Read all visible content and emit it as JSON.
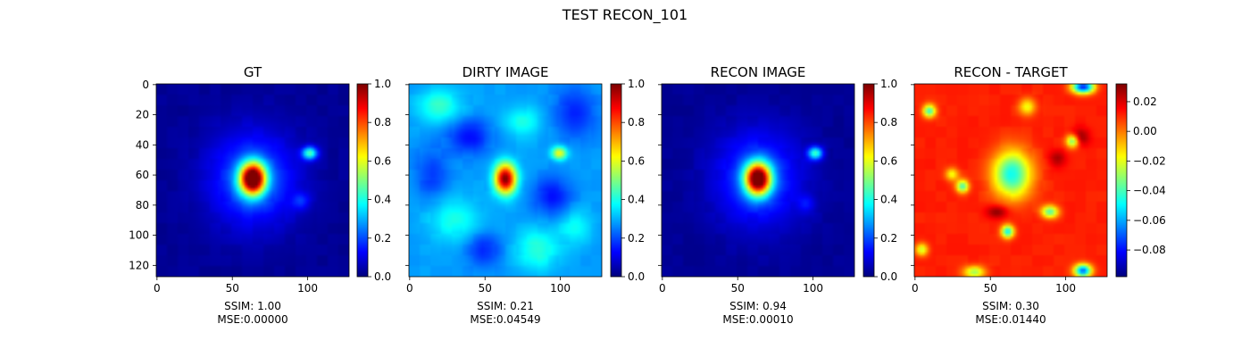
{
  "figure": {
    "suptitle": "TEST RECON_101"
  },
  "chart_data": [
    {
      "type": "heatmap",
      "title": "GT",
      "xlabel_lines": [
        "SSIM: 1.00",
        "MSE:0.00000"
      ],
      "x_ticks": [
        "0",
        "50",
        "100"
      ],
      "y_ticks": [
        "0",
        "20",
        "40",
        "60",
        "80",
        "100",
        "120"
      ],
      "colorbar": {
        "range": [
          0,
          1
        ],
        "ticks": [
          "0.0",
          "0.2",
          "0.4",
          "0.6",
          "0.8",
          "1.0"
        ],
        "colormap": "jet"
      },
      "image": {
        "size": 128,
        "background": 0.02,
        "blobs": [
          {
            "x": 64,
            "y": 63,
            "amp": 0.98,
            "sx": 6,
            "sy": 7.5
          },
          {
            "x": 64,
            "y": 63,
            "amp": 0.22,
            "sx": 20,
            "sy": 22
          },
          {
            "x": 102,
            "y": 46,
            "amp": 0.42,
            "sx": 3.5,
            "sy": 3
          },
          {
            "x": 96,
            "y": 78,
            "amp": 0.12,
            "sx": 4,
            "sy": 4
          }
        ]
      }
    },
    {
      "type": "heatmap",
      "title": "DIRTY IMAGE",
      "xlabel_lines": [
        "SSIM: 0.21",
        "MSE:0.04549"
      ],
      "x_ticks": [
        "0",
        "50",
        "100"
      ],
      "y_ticks": [
        "",
        "",
        "",
        "",
        "",
        "",
        ""
      ],
      "colorbar": {
        "range": [
          0,
          1
        ],
        "ticks": [
          "0.0",
          "0.2",
          "0.4",
          "0.6",
          "0.8",
          "1.0"
        ],
        "colormap": "jet"
      },
      "image": {
        "size": 128,
        "background": 0.28,
        "blobs": [
          {
            "x": 64,
            "y": 63,
            "amp": 0.72,
            "sx": 5,
            "sy": 7
          },
          {
            "x": 100,
            "y": 46,
            "amp": 0.35,
            "sx": 3.5,
            "sy": 3
          },
          {
            "x": 20,
            "y": 15,
            "amp": 0.15,
            "sx": 10,
            "sy": 8
          },
          {
            "x": 40,
            "y": 35,
            "amp": -0.15,
            "sx": 10,
            "sy": 8
          },
          {
            "x": 95,
            "y": 75,
            "amp": -0.14,
            "sx": 9,
            "sy": 9
          },
          {
            "x": 30,
            "y": 90,
            "amp": 0.12,
            "sx": 12,
            "sy": 10
          },
          {
            "x": 85,
            "y": 110,
            "amp": 0.14,
            "sx": 10,
            "sy": 10
          },
          {
            "x": 110,
            "y": 20,
            "amp": -0.12,
            "sx": 10,
            "sy": 12
          },
          {
            "x": 50,
            "y": 110,
            "amp": -0.12,
            "sx": 8,
            "sy": 8
          },
          {
            "x": 15,
            "y": 60,
            "amp": -0.1,
            "sx": 8,
            "sy": 12
          },
          {
            "x": 110,
            "y": 95,
            "amp": 0.1,
            "sx": 8,
            "sy": 8
          },
          {
            "x": 75,
            "y": 25,
            "amp": 0.12,
            "sx": 9,
            "sy": 7
          }
        ]
      }
    },
    {
      "type": "heatmap",
      "title": "RECON IMAGE",
      "xlabel_lines": [
        "SSIM: 0.94",
        "MSE:0.00010"
      ],
      "x_ticks": [
        "0",
        "50",
        "100"
      ],
      "y_ticks": [
        "",
        "",
        "",
        "",
        "",
        "",
        ""
      ],
      "colorbar": {
        "range": [
          0,
          1
        ],
        "ticks": [
          "0.0",
          "0.2",
          "0.4",
          "0.6",
          "0.8",
          "1.0"
        ],
        "colormap": "jet"
      },
      "image": {
        "size": 128,
        "background": 0.02,
        "blobs": [
          {
            "x": 64,
            "y": 63,
            "amp": 0.96,
            "sx": 6,
            "sy": 7.5
          },
          {
            "x": 64,
            "y": 63,
            "amp": 0.2,
            "sx": 20,
            "sy": 22
          },
          {
            "x": 102,
            "y": 46,
            "amp": 0.4,
            "sx": 3.5,
            "sy": 3
          },
          {
            "x": 96,
            "y": 80,
            "amp": 0.1,
            "sx": 4,
            "sy": 4
          }
        ]
      }
    },
    {
      "type": "heatmap",
      "title": "RECON - TARGET",
      "xlabel_lines": [
        "SSIM: 0.30",
        "MSE:0.01440"
      ],
      "x_ticks": [
        "0",
        "50",
        "100"
      ],
      "y_ticks": [
        "",
        "",
        "",
        "",
        "",
        "",
        ""
      ],
      "colorbar": {
        "range": [
          -0.098,
          0.032
        ],
        "ticks": [
          "0.02",
          "0.00",
          "−0.02",
          "−0.04",
          "−0.06",
          "−0.08"
        ],
        "tick_values": [
          0.02,
          0.0,
          -0.02,
          -0.04,
          -0.06,
          -0.08
        ],
        "colormap": "jet"
      },
      "image": {
        "size": 128,
        "background": 0.012,
        "blobs": [
          {
            "x": 65,
            "y": 60,
            "amp": -0.06,
            "sx": 9,
            "sy": 11
          },
          {
            "x": 10,
            "y": 18,
            "amp": -0.055,
            "sx": 3,
            "sy": 3
          },
          {
            "x": 32,
            "y": 68,
            "amp": -0.05,
            "sx": 3,
            "sy": 3
          },
          {
            "x": 90,
            "y": 85,
            "amp": -0.05,
            "sx": 4,
            "sy": 3
          },
          {
            "x": 62,
            "y": 98,
            "amp": -0.06,
            "sx": 3,
            "sy": 3
          },
          {
            "x": 105,
            "y": 38,
            "amp": -0.05,
            "sx": 3,
            "sy": 3
          },
          {
            "x": 112,
            "y": 2,
            "amp": -0.09,
            "sx": 5,
            "sy": 3
          },
          {
            "x": 112,
            "y": 124,
            "amp": -0.08,
            "sx": 4,
            "sy": 3
          },
          {
            "x": 40,
            "y": 125,
            "amp": -0.04,
            "sx": 5,
            "sy": 3
          },
          {
            "x": 110,
            "y": 35,
            "amp": 0.02,
            "sx": 4,
            "sy": 4
          },
          {
            "x": 55,
            "y": 85,
            "amp": 0.02,
            "sx": 5,
            "sy": 3
          },
          {
            "x": 95,
            "y": 50,
            "amp": 0.015,
            "sx": 4,
            "sy": 4
          },
          {
            "x": 25,
            "y": 60,
            "amp": -0.03,
            "sx": 3,
            "sy": 3
          },
          {
            "x": 75,
            "y": 15,
            "amp": -0.03,
            "sx": 4,
            "sy": 4
          },
          {
            "x": 5,
            "y": 110,
            "amp": -0.035,
            "sx": 3,
            "sy": 3
          }
        ]
      }
    }
  ]
}
